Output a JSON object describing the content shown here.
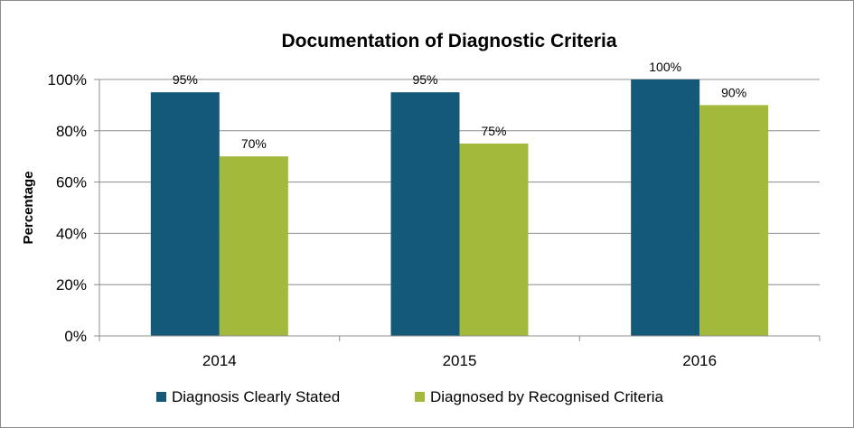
{
  "chart_data": {
    "type": "bar",
    "title": "Documentation of Diagnostic Criteria",
    "ylabel": "Percentage",
    "xlabel": "",
    "categories": [
      "2014",
      "2015",
      "2016"
    ],
    "ylim": [
      0,
      100
    ],
    "yticks": [
      0,
      20,
      40,
      60,
      80,
      100
    ],
    "ytick_labels": [
      "0%",
      "20%",
      "40%",
      "60%",
      "80%",
      "100%"
    ],
    "series": [
      {
        "name": "Diagnosis Clearly Stated",
        "values": [
          95,
          95,
          100
        ],
        "labels": [
          "95%",
          "95%",
          "100%"
        ],
        "color": "#145a78"
      },
      {
        "name": "Diagnosed by Recognised Criteria",
        "values": [
          70,
          75,
          90
        ],
        "labels": [
          "70%",
          "75%",
          "90%"
        ],
        "color": "#a2b93b"
      }
    ],
    "grid": true,
    "legend": "bottom"
  }
}
